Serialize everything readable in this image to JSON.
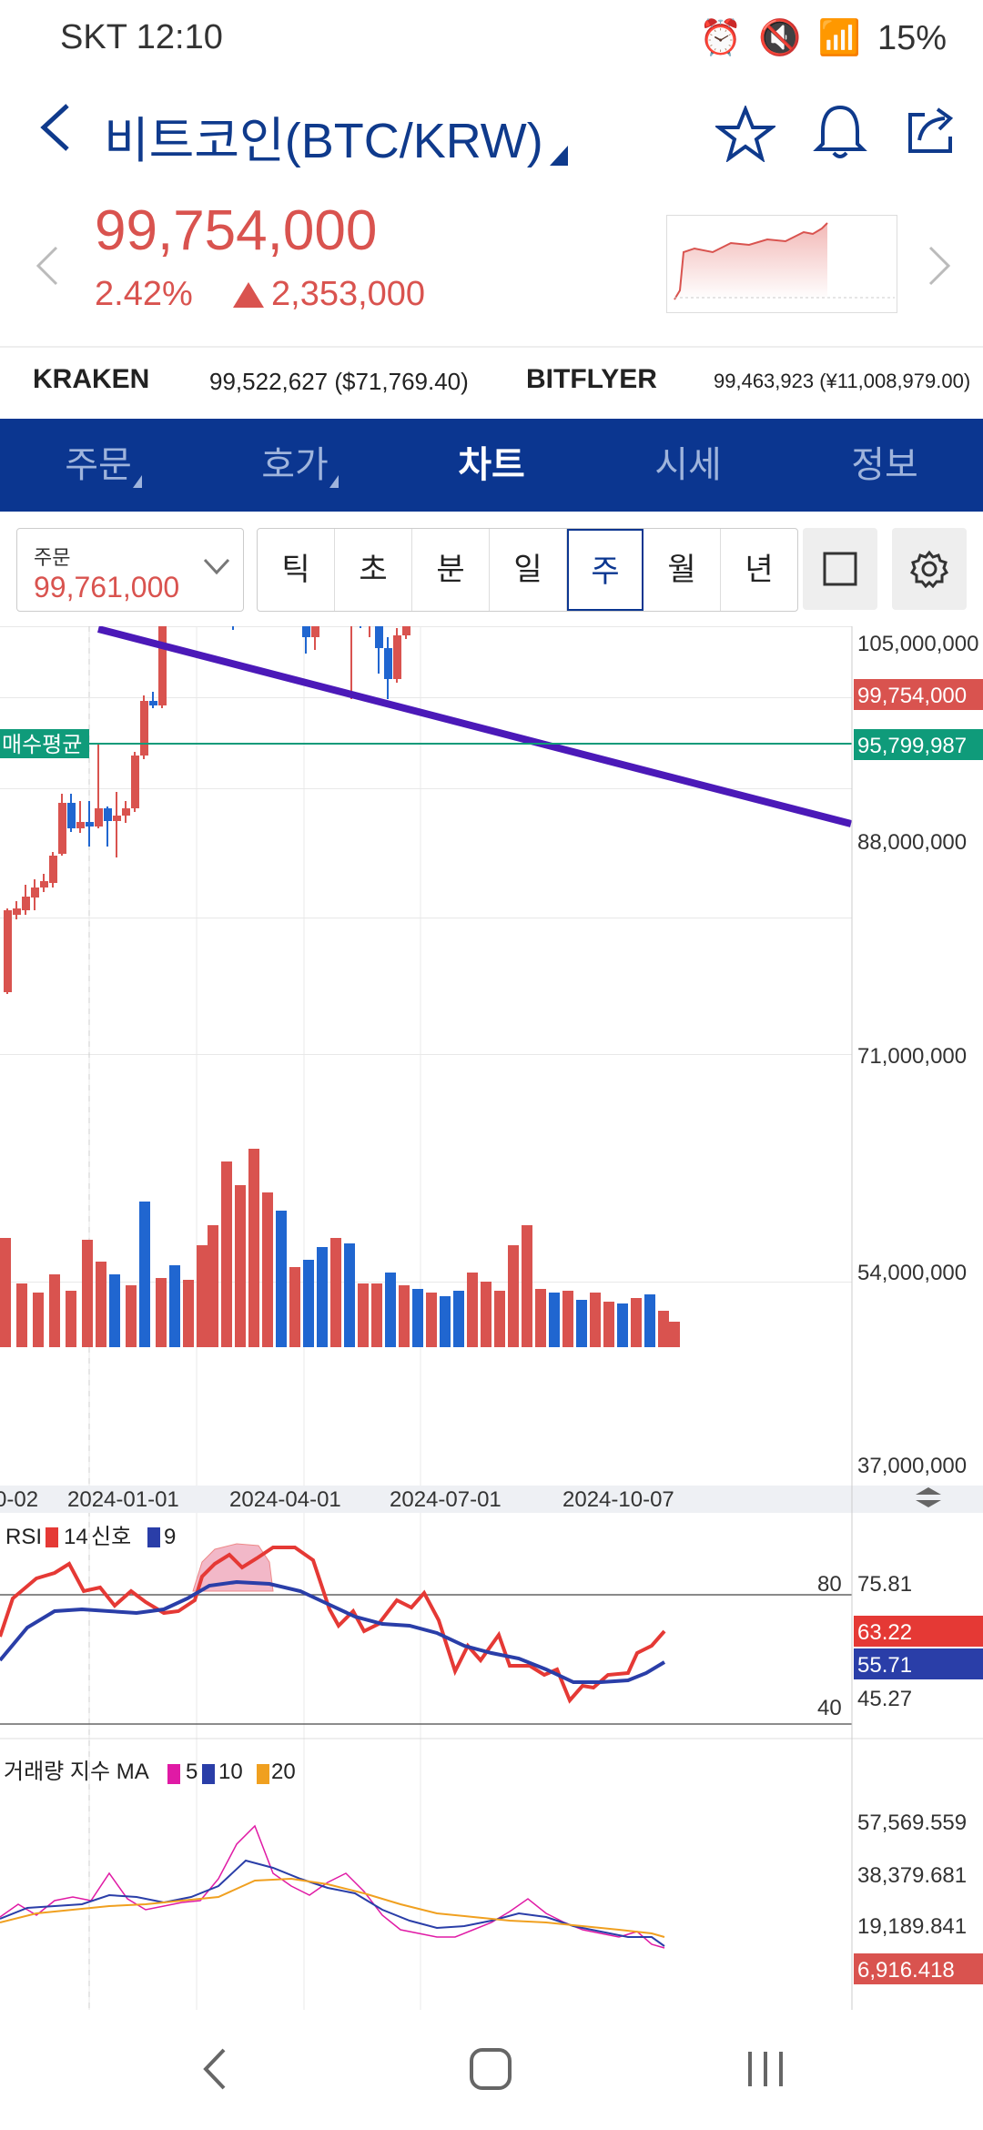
{
  "status": {
    "carrier_time": "SKT 12:10",
    "battery": "15%"
  },
  "header": {
    "title": "비트코인(BTC/KRW)",
    "price": "99,754,000",
    "change_pct": "2.42%",
    "change_abs": "2,353,000"
  },
  "exchanges": [
    {
      "name": "KRAKEN",
      "value": "99,522,627 ($71,769.40)"
    },
    {
      "name": "BITFLYER",
      "value": "99,463,923 (¥11,008,979.00)"
    }
  ],
  "tabs": [
    "주문",
    "호가",
    "차트",
    "시세",
    "정보"
  ],
  "order_box": {
    "label": "주문",
    "value": "99,761,000"
  },
  "periods": [
    "틱",
    "초",
    "분",
    "일",
    "주",
    "월",
    "년"
  ],
  "selected_period": "주",
  "chart_data": {
    "type": "candlestick",
    "price_axis": [
      "105,000,000",
      "88,000,000",
      "71,000,000",
      "54,000,000",
      "37,000,000"
    ],
    "date_axis": [
      "0-02",
      "2024-01-01",
      "2024-04-01",
      "2024-07-01",
      "2024-10-07"
    ],
    "current_price_tag": "99,754,000",
    "avg_buy_label": "매수평균",
    "avg_buy_value": "95,799,987",
    "rsi": {
      "label": "RSI",
      "period": "14",
      "signal_label": "신호",
      "signal_period": "9",
      "levels": [
        "80",
        "40"
      ],
      "axis": [
        "75.81",
        "45.27"
      ],
      "rsi_value": "63.22",
      "signal_value": "55.71"
    },
    "volume": {
      "label": "거래량 지수 MA",
      "ma": [
        "5",
        "10",
        "20"
      ],
      "axis": [
        "57,569.559",
        "38,379.681",
        "19,189.841"
      ],
      "current": "6,916.418"
    }
  },
  "colors": {
    "up": "#d9534f",
    "down": "#2066d0",
    "trend": "#4b19b8",
    "avg": "#0f9b7a"
  }
}
